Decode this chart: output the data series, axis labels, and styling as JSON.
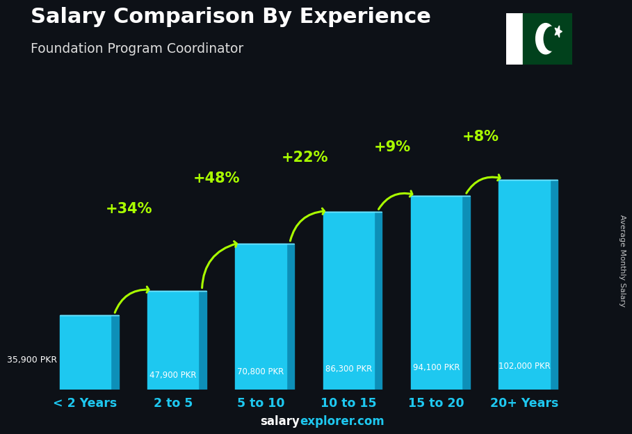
{
  "title": "Salary Comparison By Experience",
  "subtitle": "Foundation Program Coordinator",
  "categories": [
    "< 2 Years",
    "2 to 5",
    "5 to 10",
    "10 to 15",
    "15 to 20",
    "20+ Years"
  ],
  "values": [
    35900,
    47900,
    70800,
    86300,
    94100,
    102000
  ],
  "labels": [
    "35,900 PKR",
    "47,900 PKR",
    "70,800 PKR",
    "86,300 PKR",
    "94,100 PKR",
    "102,000 PKR"
  ],
  "arc_params": [
    [
      0,
      1,
      "+34%"
    ],
    [
      1,
      2,
      "+48%"
    ],
    [
      2,
      3,
      "+22%"
    ],
    [
      3,
      4,
      "+9%"
    ],
    [
      4,
      5,
      "+8%"
    ]
  ],
  "bar_color_face": "#1ec8f0",
  "bar_color_side": "#0d8fb8",
  "bar_color_top": "#6ee4ff",
  "bg_color": "#0d1117",
  "title_color": "#ffffff",
  "subtitle_color": "#dddddd",
  "label_color": "#ffffff",
  "pct_color": "#aaff00",
  "cat_color": "#1ec8f0",
  "ylabel": "Average Monthly Salary",
  "watermark_salary": "salary",
  "watermark_explorer": "explorer.com",
  "ylim": [
    0,
    130000
  ],
  "figsize": [
    9.0,
    6.41
  ],
  "dpi": 100
}
